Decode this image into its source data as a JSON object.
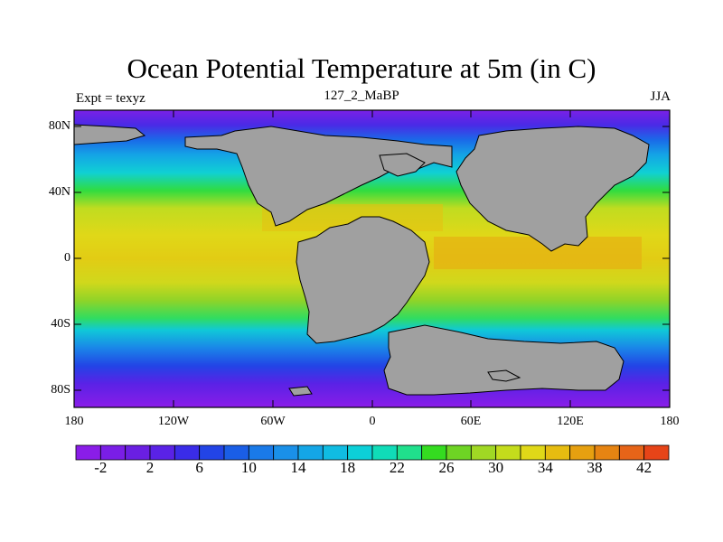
{
  "map": {
    "title": "Ocean Potential Temperature at 5m (in C)",
    "left_label": "Expt = texyz",
    "center_label": "127_2_MaBP",
    "right_label": "JJA",
    "lat_ticks": [
      "80N",
      "40N",
      "0",
      "40S",
      "80S"
    ],
    "lon_ticks": [
      "180",
      "120W",
      "60W",
      "0",
      "60E",
      "120E",
      "180"
    ],
    "land_color": "#a0a0a0"
  },
  "colorbar": {
    "labels": [
      "-2",
      "2",
      "6",
      "10",
      "14",
      "18",
      "22",
      "26",
      "30",
      "34",
      "38",
      "42"
    ],
    "colors": [
      "#8a1de8",
      "#7a1ee6",
      "#6a1fe2",
      "#5a22e6",
      "#3a2ce8",
      "#2244e6",
      "#1a5ee6",
      "#1a7ae8",
      "#1a90e8",
      "#14a6e6",
      "#10bce2",
      "#0cd0d8",
      "#10dcb8",
      "#20e08c",
      "#34dc20",
      "#6ed424",
      "#a0d824",
      "#c4dc1c",
      "#e0d818",
      "#e6bc10",
      "#e6a010",
      "#e68412",
      "#e66418",
      "#e64418"
    ]
  }
}
